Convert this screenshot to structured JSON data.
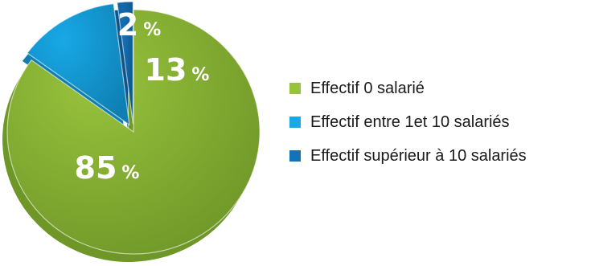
{
  "chart_data": {
    "type": "pie",
    "style": "3d-exploded",
    "slices": [
      {
        "label": "Effectif 0 salarié",
        "value": 85,
        "display": "85",
        "unit": "%",
        "color": "#98c23c",
        "side_color": "#6e9728"
      },
      {
        "label": "Effectif entre 1et 10 salariés",
        "value": 13,
        "display": "13",
        "unit": "%",
        "color": "#18a8e6",
        "side_color": "#0f7fb3"
      },
      {
        "label": "Effectif supérieur à 10 salariés",
        "value": 2,
        "display": "2",
        "unit": "%",
        "color": "#1473b8",
        "side_color": "#0d5488"
      }
    ],
    "legend_position": "right"
  }
}
